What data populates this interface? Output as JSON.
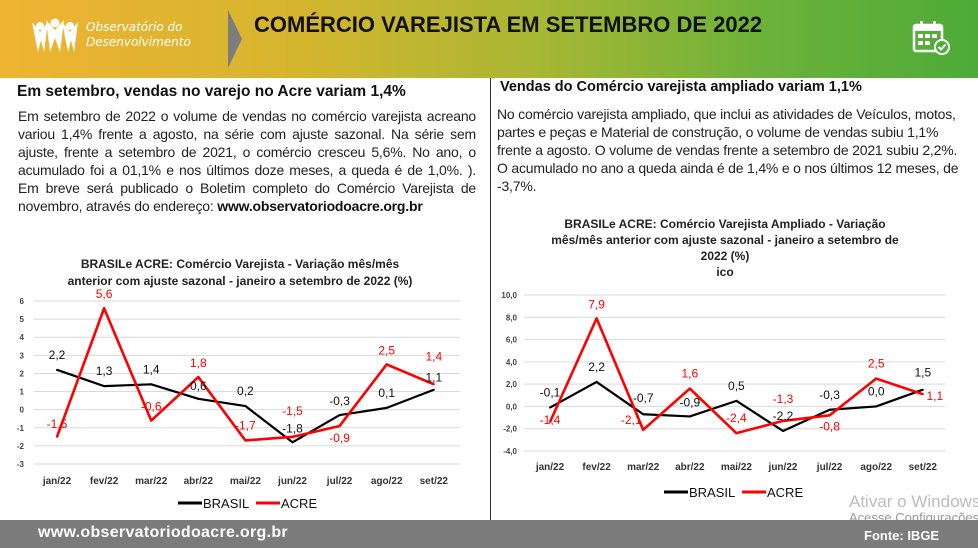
{
  "header": {
    "logo_line1": "Observatório do",
    "logo_line2": "Desenvolvimento",
    "title": "COMÉRCIO VAREJISTA EM SETEMBRO DE 2022",
    "icon": "calendar-check-icon"
  },
  "left": {
    "title": "Em setembro, vendas no varejo no Acre variam 1,4%",
    "paragraph": "Em setembro de 2022 o volume de vendas no comércio varejista acreano variou 1,4% frente a agosto, na série com ajuste sazonal. Na série sem ajuste, frente a setembro de 2021, o comércio cresceu 5,6%. No ano, o acumulado foi a 01,1% e nos últimos doze meses, a queda é de 1,0%. ).  Em breve será publicado o Boletim completo do Comércio Varejista de novembro, através do endereço:",
    "link": "www.observatoriodoacre.org.br"
  },
  "right": {
    "title": "Vendas do Comércio varejista ampliado variam 1,1%",
    "paragraph": "No comércio varejista ampliado, que inclui as atividades de Veículos, motos, partes e peças e Material de construção, o volume de vendas subiu 1,1% frente a agosto. O volume de vendas frente a setembro de 2021 subiu 2,2%. O acumulado no ano a queda ainda é de  1,4% e o nos últimos 12 meses, de -3,7%."
  },
  "chart_data": [
    {
      "type": "line",
      "title_line1": "BRASILe ACRE: Comércio Varejista - Variação mês/mês",
      "title_line2": "anterior com ajuste sazonal - janeiro a setembro de 2022 (%)",
      "categories": [
        "jan/22",
        "fev/22",
        "mar/22",
        "abr/22",
        "mai/22",
        "jun/22",
        "jul/22",
        "ago/22",
        "set/22"
      ],
      "ylim": [
        -3,
        6
      ],
      "yticks": [
        "-3",
        "-2",
        "-1",
        "0",
        "1",
        "2",
        "3",
        "4",
        "5",
        "6"
      ],
      "grid": true,
      "legend": "bottom",
      "series": [
        {
          "name": "BRASIL",
          "color": "#000000",
          "values": [
            2.2,
            1.3,
            1.4,
            0.6,
            0.2,
            -1.8,
            -0.3,
            0.1,
            1.1
          ],
          "labels": [
            "2,2",
            "1,3",
            "1,4",
            "0,6",
            "0,2",
            "-1,8",
            "-0,3",
            "0,1",
            "1,1"
          ]
        },
        {
          "name": "ACRE",
          "color": "#ff0000",
          "values": [
            -1.5,
            5.6,
            -0.6,
            1.8,
            -1.7,
            -1.5,
            -0.9,
            2.5,
            1.4
          ],
          "labels": [
            "-1,5",
            "5,6",
            "-0,6",
            "1,8",
            "-1,7",
            "-1,5",
            "-0,9",
            "2,5",
            "1,4"
          ]
        }
      ]
    },
    {
      "type": "line",
      "title_line1": "BRASILe ACRE: Comércio Varejista Ampliado - Variação",
      "title_line2": "mês/mês anterior com ajuste sazonal - janeiro a setembro de",
      "title_line3": "2022 (%)",
      "title_line4": "ico",
      "categories": [
        "jan/22",
        "fev/22",
        "mar/22",
        "abr/22",
        "mai/22",
        "jun/22",
        "jul/22",
        "ago/22",
        "set/22"
      ],
      "ylim": [
        -4,
        10
      ],
      "yticks": [
        "-4,0",
        "-2,0",
        "0,0",
        "2,0",
        "4,0",
        "6,0",
        "8,0",
        "10,0"
      ],
      "grid": true,
      "legend": "bottom",
      "series": [
        {
          "name": "BRASIL",
          "color": "#000000",
          "values": [
            -0.1,
            2.2,
            -0.7,
            -0.9,
            0.5,
            -2.2,
            -0.3,
            0.0,
            1.5
          ],
          "labels": [
            "-0,1",
            "2,2",
            "-0,7",
            "-0,9",
            "0,5",
            "-2,2",
            "-0,3",
            "0,0",
            "1,5"
          ]
        },
        {
          "name": "ACRE",
          "color": "#ff0000",
          "values": [
            -1.4,
            7.9,
            -2.1,
            1.6,
            -2.4,
            -1.3,
            -0.8,
            2.5,
            1.1
          ],
          "labels": [
            "-1,4",
            "7,9",
            "-2,1",
            "1,6",
            "-2,4",
            "-1,3",
            "-0,8",
            "2,5",
            "1,1"
          ]
        }
      ]
    }
  ],
  "footer": {
    "url": "www.observatoriodoacre.org.br",
    "source": "Fonte: IBGE"
  },
  "watermark": {
    "line1": "Ativar o Windows",
    "line2": "Acesse Configurações"
  }
}
